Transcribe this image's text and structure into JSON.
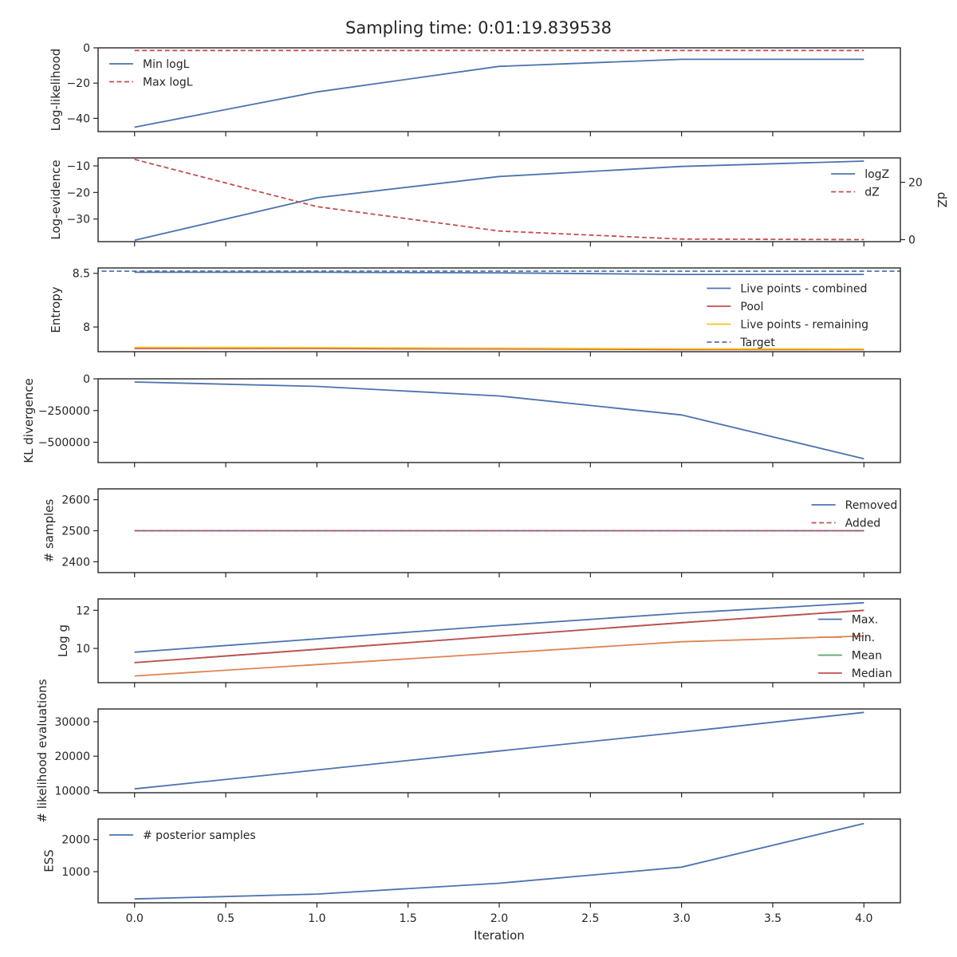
{
  "figure": {
    "title": "Sampling time: 0:01:19.839538"
  },
  "chart_data": [
    {
      "type": "line",
      "name": "loglikelihood",
      "ylabel": "Log-likelihood",
      "ylim": [
        -47.5,
        0
      ],
      "yticks": [
        0,
        -20,
        -40
      ],
      "x": [
        0,
        1,
        2,
        3,
        4
      ],
      "series": [
        {
          "name": "Min logL",
          "values": [
            -45,
            -25,
            -10.5,
            -6.5,
            -6.5
          ],
          "color": "#4c72b0",
          "dash": false
        },
        {
          "name": "Max logL",
          "values": [
            -1.5,
            -1.5,
            -1.5,
            -1.5,
            -1.5
          ],
          "color": "#c44e52",
          "dash": true
        }
      ],
      "legend": "upper-left"
    },
    {
      "type": "line",
      "name": "logevidence",
      "ylabel": "Log-evidence",
      "ylim": [
        -38.5,
        -7
      ],
      "yticks": [
        -10,
        -20,
        -30
      ],
      "y2label": "dZ",
      "y2lim": [
        -0.7,
        28.5
      ],
      "y2ticks": [
        0,
        20
      ],
      "x": [
        0,
        1,
        2,
        3,
        4
      ],
      "series": [
        {
          "name": "logZ",
          "values": [
            -38,
            -22,
            -14,
            -10.2,
            -8.2
          ],
          "color": "#4c72b0",
          "dash": false,
          "axis": "left"
        },
        {
          "name": "dZ",
          "values": [
            28,
            11.5,
            3,
            0.2,
            0.01
          ],
          "color": "#c44e52",
          "dash": true,
          "axis": "right"
        }
      ],
      "legend": "upper-right"
    },
    {
      "type": "line",
      "name": "entropy",
      "ylabel": "Entropy",
      "ylim": [
        7.77,
        8.55
      ],
      "yticks": [
        8.5,
        8.0
      ],
      "x": [
        0,
        1,
        2,
        3,
        4
      ],
      "series": [
        {
          "name": "Live points - combined",
          "values": [
            8.51,
            8.51,
            8.505,
            8.49,
            8.49
          ],
          "color": "#4c72b0",
          "dash": false
        },
        {
          "name": "Pool",
          "values": [
            7.8,
            7.8,
            7.795,
            7.79,
            7.79
          ],
          "color": "#c44e52",
          "dash": false
        },
        {
          "name": "Live points - remaining",
          "values": [
            7.81,
            7.808,
            7.803,
            7.797,
            7.795
          ],
          "color": "#f5c518",
          "dash": false
        },
        {
          "name": "Target",
          "values": [
            8.52,
            8.52,
            8.52,
            8.52,
            8.52
          ],
          "color": "#4c72b0",
          "dash": true,
          "span": "full"
        }
      ],
      "legend": "lower-right"
    },
    {
      "type": "line",
      "name": "kl",
      "ylabel": "KL divergence",
      "ylim": [
        -660000,
        0
      ],
      "yticks": [
        0,
        -250000,
        -500000
      ],
      "x": [
        0,
        1,
        2,
        3,
        4
      ],
      "series": [
        {
          "name": "KL divergence",
          "values": [
            -25000,
            -60000,
            -135000,
            -285000,
            -630000
          ],
          "color": "#4c72b0",
          "dash": false
        }
      ]
    },
    {
      "type": "line",
      "name": "samples",
      "ylabel": "# samples",
      "ylim": [
        2365,
        2635
      ],
      "yticks": [
        2600,
        2500,
        2400
      ],
      "x": [
        0,
        1,
        2,
        3,
        4
      ],
      "series": [
        {
          "name": "Removed",
          "values": [
            2500,
            2500,
            2500,
            2500,
            2500
          ],
          "color": "#4c72b0",
          "dash": false
        },
        {
          "name": "Added",
          "values": [
            2500,
            2500,
            2500,
            2500,
            2500
          ],
          "color": "#c44e52",
          "dash": true
        }
      ],
      "legend": "upper-right"
    },
    {
      "type": "line",
      "name": "logg",
      "ylabel": "Log g",
      "ylim": [
        8.2,
        12.6
      ],
      "yticks": [
        12,
        10
      ],
      "x": [
        0,
        1,
        2,
        3,
        4
      ],
      "series": [
        {
          "name": "Max.",
          "values": [
            9.8,
            10.5,
            11.2,
            11.85,
            12.4
          ],
          "color": "#4c72b0",
          "dash": false
        },
        {
          "name": "Min.",
          "values": [
            8.55,
            9.15,
            9.75,
            10.35,
            10.65
          ],
          "color": "#dd8452",
          "dash": false
        },
        {
          "name": "Mean",
          "values": [
            9.25,
            9.95,
            10.65,
            11.35,
            12.0
          ],
          "color": "#55a868",
          "dash": false
        },
        {
          "name": "Median",
          "values": [
            9.25,
            9.95,
            10.65,
            11.35,
            12.0
          ],
          "color": "#c44e52",
          "dash": false
        }
      ],
      "legend": "lower-right"
    },
    {
      "type": "line",
      "name": "likelihood-evaluations",
      "ylabel": "# likelihood evaluations",
      "ylim": [
        9400,
        33700
      ],
      "yticks": [
        30000,
        20000,
        10000
      ],
      "x": [
        0,
        1,
        2,
        3,
        4
      ],
      "series": [
        {
          "name": "# likelihood evaluations",
          "values": [
            10500,
            16000,
            21500,
            27000,
            32700
          ],
          "color": "#4c72b0",
          "dash": false
        }
      ]
    },
    {
      "type": "line",
      "name": "ess",
      "ylabel": "ESS",
      "ylim": [
        30,
        2640
      ],
      "yticks": [
        2000,
        1000
      ],
      "xlabel": "Iteration",
      "xticks": [
        0.0,
        0.5,
        1.0,
        1.5,
        2.0,
        2.5,
        3.0,
        3.5,
        4.0
      ],
      "xtick_labels": [
        "0.0",
        "0.5",
        "1.0",
        "1.5",
        "2.0",
        "2.5",
        "3.0",
        "3.5",
        "4.0"
      ],
      "x": [
        0,
        1,
        2,
        3,
        4
      ],
      "series": [
        {
          "name": "# posterior samples",
          "values": [
            150,
            300,
            640,
            1140,
            2500
          ],
          "color": "#4c72b0",
          "dash": false
        }
      ],
      "legend": "upper-left"
    }
  ]
}
